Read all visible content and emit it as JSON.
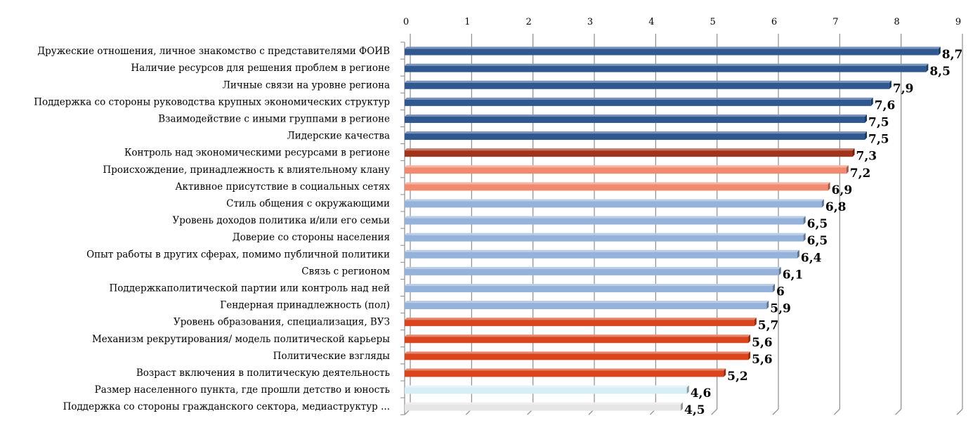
{
  "chart_data": {
    "type": "bar",
    "orientation": "horizontal",
    "xlim": [
      0,
      9
    ],
    "x_ticks": [
      "0",
      "1",
      "2",
      "3",
      "4",
      "5",
      "6",
      "7",
      "8",
      "9"
    ],
    "x_axis_position": "top",
    "grid": true,
    "categories": [
      "Дружеские отношения, личное знакомство с представителями ФОИВ",
      "Наличие ресурсов для решения проблем в регионе",
      "Личные связи на уровне региона",
      "Поддержка со стороны руководства крупных экономических структур",
      "Взаимодействие с иными группами в регионе",
      "Лидерские качества",
      "Контроль над экономическими ресурсами в регионе",
      "Происхождение, принадлежность к влиятельному клану",
      "Активное присутствие в социальных сетях",
      "Стиль общения с окружающими",
      "Уровень доходов политика и/или его семьи",
      "Доверие со стороны населения",
      "Опыт работы в других сферах, помимо публичной политики",
      "Связь с регионом",
      "Поддержкаполитической партии или контроль над ней",
      "Гендерная принадлежность (пол)",
      "Уровень образования, специализация, ВУЗ",
      "Механизм рекрутирования/ модель политической карьеры",
      "Политические взгляды",
      "Возраст включения в политическую деятельность",
      "Размер населенного пункта, где прошли детство и юность",
      "Поддержка со стороны гражданского сектора, медиаструктур ..."
    ],
    "values": [
      8.7,
      8.5,
      7.9,
      7.6,
      7.5,
      7.5,
      7.3,
      7.2,
      6.9,
      6.8,
      6.5,
      6.5,
      6.4,
      6.1,
      6,
      5.9,
      5.7,
      5.6,
      5.6,
      5.2,
      4.6,
      4.5
    ],
    "value_labels": [
      "8,7",
      "8,5",
      "7,9",
      "7,6",
      "7,5",
      "7,5",
      "7,3",
      "7,2",
      "6,9",
      "6,8",
      "6,5",
      "6,5",
      "6,4",
      "6,1",
      "6",
      "5,9",
      "5,7",
      "5,6",
      "5,6",
      "5,2",
      "4,6",
      "4,5"
    ],
    "bar_colors": [
      "#2f5891",
      "#2f5891",
      "#2f5891",
      "#2f5891",
      "#2f5891",
      "#2f5891",
      "#a3331a",
      "#f08a70",
      "#f08a70",
      "#94b2da",
      "#94b2da",
      "#94b2da",
      "#94b2da",
      "#94b2da",
      "#94b2da",
      "#94b2da",
      "#d9461e",
      "#d9461e",
      "#d9461e",
      "#d9461e",
      "#d8eef6",
      "#e6e6e6"
    ]
  }
}
